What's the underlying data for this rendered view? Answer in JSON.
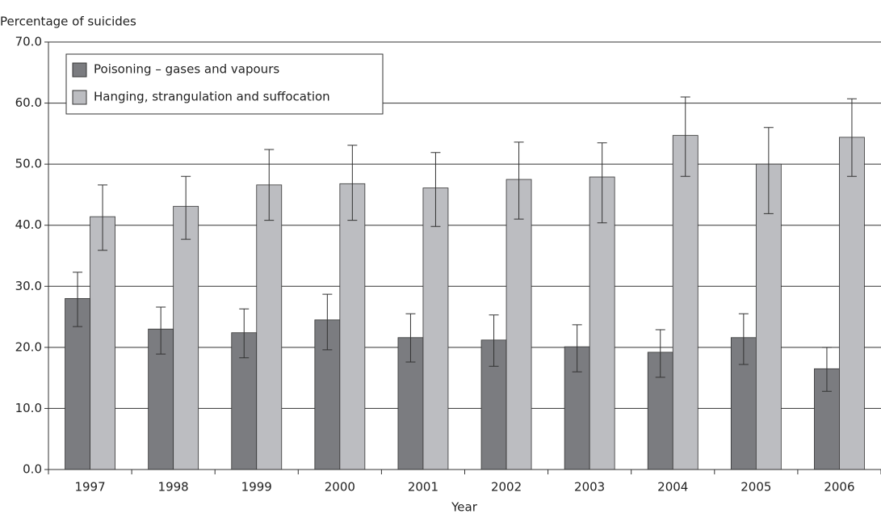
{
  "chart_data": {
    "type": "bar",
    "y_label": "Percentage of suicides",
    "x_label": "Year",
    "categories": [
      "1997",
      "1998",
      "1999",
      "2000",
      "2001",
      "2002",
      "2003",
      "2004",
      "2005",
      "2006"
    ],
    "series": [
      {
        "name": "Poisoning – gases and vapours",
        "color": "#7b7c80",
        "values": [
          28.0,
          23.0,
          22.4,
          24.5,
          21.6,
          21.2,
          20.1,
          19.2,
          21.6,
          16.5
        ],
        "error_low": [
          23.4,
          18.9,
          18.3,
          19.6,
          17.6,
          16.9,
          16.0,
          15.1,
          17.2,
          12.8
        ],
        "error_high": [
          32.3,
          26.6,
          26.3,
          28.7,
          25.5,
          25.3,
          23.7,
          22.9,
          25.5,
          20.0
        ]
      },
      {
        "name": "Hanging, strangulation and suffocation",
        "color": "#bcbdc1",
        "values": [
          41.4,
          43.1,
          46.6,
          46.8,
          46.1,
          47.5,
          47.9,
          54.7,
          50.0,
          54.4
        ],
        "error_low": [
          35.9,
          37.7,
          40.8,
          40.8,
          39.8,
          41.0,
          40.4,
          48.0,
          41.9,
          48.0
        ],
        "error_high": [
          46.6,
          48.0,
          52.4,
          53.1,
          51.9,
          53.6,
          53.5,
          61.0,
          56.0,
          60.7
        ]
      }
    ],
    "ylim": [
      0,
      70
    ],
    "yticks": [
      {
        "value": 0,
        "label": "0.0"
      },
      {
        "value": 10,
        "label": "10.0"
      },
      {
        "value": 20,
        "label": "20.0"
      },
      {
        "value": 30,
        "label": "30.0"
      },
      {
        "value": 40,
        "label": "40.0"
      },
      {
        "value": 50,
        "label": "50.0"
      },
      {
        "value": 60,
        "label": "60.0"
      },
      {
        "value": 70,
        "label": "70.0"
      }
    ],
    "grid": true
  }
}
